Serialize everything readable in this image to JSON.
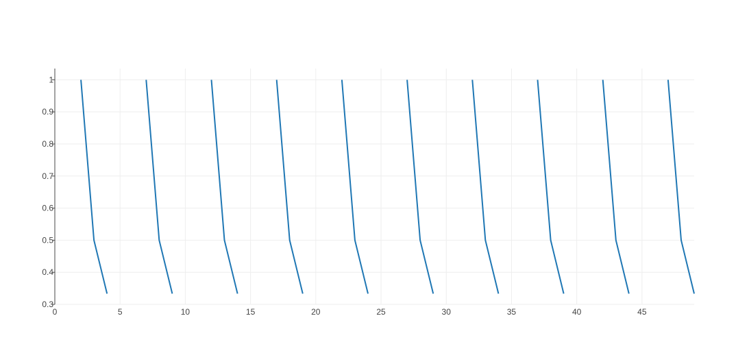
{
  "chart_data": {
    "type": "line",
    "title": "",
    "xlabel": "",
    "ylabel": "",
    "xlim": [
      0,
      49
    ],
    "ylim": [
      0.3,
      1.035
    ],
    "x_ticks": [
      0,
      5,
      10,
      15,
      20,
      25,
      30,
      35,
      40,
      45
    ],
    "x_tick_labels": [
      "0",
      "5",
      "10",
      "15",
      "20",
      "25",
      "30",
      "35",
      "40",
      "45"
    ],
    "y_ticks": [
      0.3,
      0.4,
      0.5,
      0.6,
      0.7,
      0.8,
      0.9,
      1.0
    ],
    "y_tick_labels": [
      "0.3",
      "0.4",
      "0.5",
      "0.6",
      "0.7",
      "0.8",
      "0.9",
      "1"
    ],
    "grid": true,
    "legend": "none",
    "series_color": "#1f77b4",
    "grid_color": "#eeeeee",
    "axis_color": "#444444",
    "series": [
      {
        "segments": [
          {
            "x": [
              2,
              3,
              4
            ],
            "y": [
              1.0,
              0.5,
              0.3333
            ]
          },
          {
            "x": [
              7,
              8,
              9
            ],
            "y": [
              1.0,
              0.5,
              0.3333
            ]
          },
          {
            "x": [
              12,
              13,
              14
            ],
            "y": [
              1.0,
              0.5,
              0.3333
            ]
          },
          {
            "x": [
              17,
              18,
              19
            ],
            "y": [
              1.0,
              0.5,
              0.3333
            ]
          },
          {
            "x": [
              22,
              23,
              24
            ],
            "y": [
              1.0,
              0.5,
              0.3333
            ]
          },
          {
            "x": [
              27,
              28,
              29
            ],
            "y": [
              1.0,
              0.5,
              0.3333
            ]
          },
          {
            "x": [
              32,
              33,
              34
            ],
            "y": [
              1.0,
              0.5,
              0.3333
            ]
          },
          {
            "x": [
              37,
              38,
              39
            ],
            "y": [
              1.0,
              0.5,
              0.3333
            ]
          },
          {
            "x": [
              42,
              43,
              44
            ],
            "y": [
              1.0,
              0.5,
              0.3333
            ]
          },
          {
            "x": [
              47,
              48,
              49
            ],
            "y": [
              1.0,
              0.5,
              0.3333
            ]
          }
        ]
      }
    ]
  }
}
